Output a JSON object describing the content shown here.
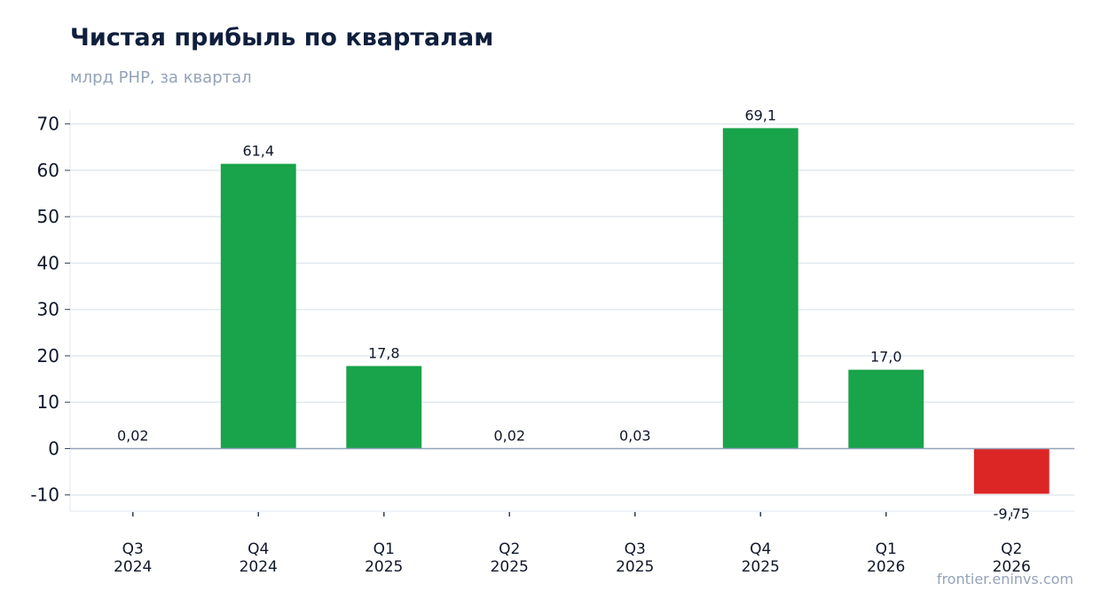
{
  "title": "Чистая прибыль по кварталам",
  "subtitle": "млрд РНР, за квартал",
  "source": "frontier.eninvs.com",
  "colors": {
    "positive": "#19a34a",
    "negative": "#dc2626",
    "grid": "#e2e8f0",
    "zero_line": "#94a3b8",
    "axis_text": "#0f172a"
  },
  "chart_data": {
    "type": "bar",
    "categories": [
      [
        "Q3",
        "2024"
      ],
      [
        "Q4",
        "2024"
      ],
      [
        "Q1",
        "2025"
      ],
      [
        "Q2",
        "2025"
      ],
      [
        "Q3",
        "2025"
      ],
      [
        "Q4",
        "2025"
      ],
      [
        "Q1",
        "2026"
      ],
      [
        "Q2",
        "2026"
      ]
    ],
    "values": [
      0.02,
      61.4,
      17.8,
      0.02,
      0.03,
      69.1,
      17.0,
      -9.75
    ],
    "value_labels": [
      "0,02",
      "61,4",
      "17,8",
      "0,02",
      "0,03",
      "69,1",
      "17,0",
      "-9,75"
    ],
    "yticks": [
      -10,
      0,
      10,
      20,
      30,
      40,
      50,
      60,
      70
    ],
    "ytick_labels": [
      "-10",
      "0",
      "10",
      "20",
      "30",
      "40",
      "50",
      "60",
      "70"
    ],
    "ylim": [
      -13.5,
      73
    ],
    "grid": true,
    "legend": "none"
  }
}
